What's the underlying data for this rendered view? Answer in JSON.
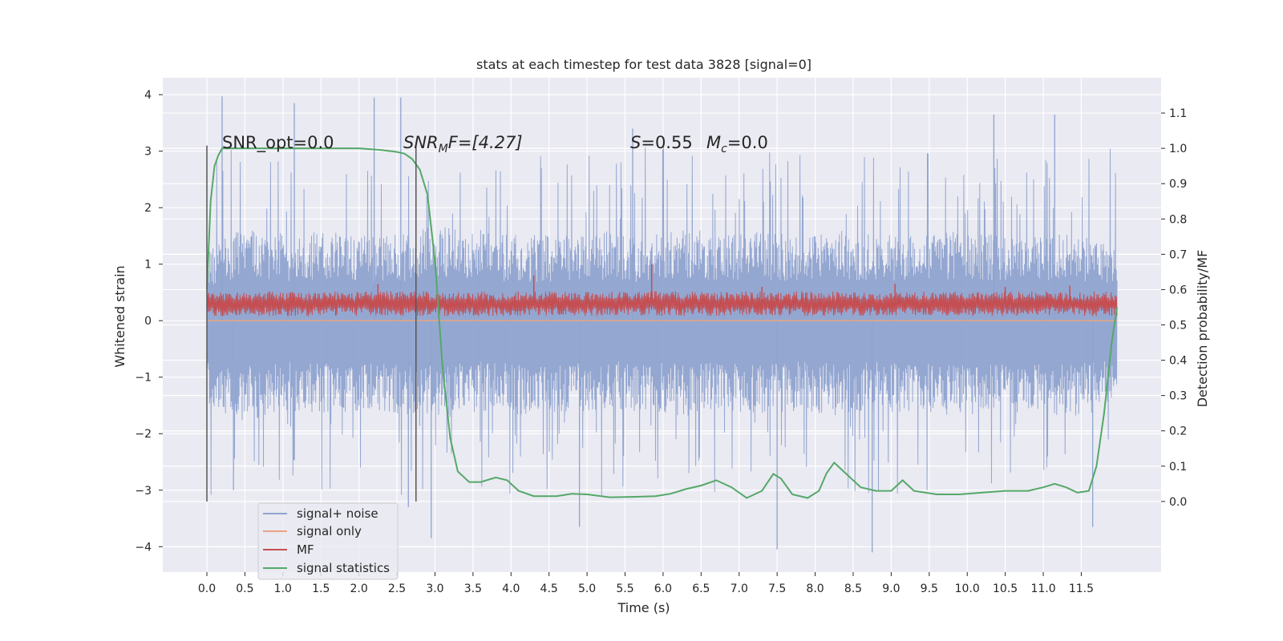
{
  "chart_data": {
    "type": "line",
    "title": "stats at each timestep for test data 3828 [signal=0]",
    "xlabel": "Time (s)",
    "ylabel": "Whitened strain",
    "ylabel_right": "Detection probability/MF",
    "xlim": [
      -0.58,
      12.55
    ],
    "ylim": [
      -4.45,
      4.3
    ],
    "ylim_right": [
      -0.2,
      1.2
    ],
    "x_ticks": [
      "0.0",
      "0.5",
      "1.0",
      "1.5",
      "2.0",
      "2.5",
      "3.0",
      "3.5",
      "4.0",
      "4.5",
      "5.0",
      "5.5",
      "6.0",
      "6.5",
      "7.0",
      "7.5",
      "8.0",
      "8.5",
      "9.0",
      "9.5",
      "10.0",
      "10.5",
      "11.0",
      "11.5"
    ],
    "y_ticks": [
      "4",
      "3",
      "2",
      "1",
      "0",
      "−1",
      "−2",
      "−3",
      "−4"
    ],
    "y_ticks_right": [
      "1.1",
      "1.0",
      "0.9",
      "0.8",
      "0.7",
      "0.6",
      "0.5",
      "0.4",
      "0.3",
      "0.2",
      "0.1",
      "0.0"
    ],
    "grid": true,
    "legend_position": "lower-left",
    "annotations": {
      "snr_opt": "SNR_opt=0.0",
      "snr_mf_sym": "SNR",
      "snr_mf_sub": "M",
      "snr_mf_tail": "F=[4.27]",
      "s_sym": "S",
      "s_val": "=0.55",
      "mc_sym": "M",
      "mc_sub": "c",
      "mc_val": "=0.0"
    },
    "vertical_markers": [
      0.0,
      2.75
    ],
    "series": [
      {
        "name": "signal+ noise",
        "color": "#8fa3cf",
        "envelope_upper": [
          1.35,
          1.7,
          1.55,
          1.6,
          1.5,
          1.55,
          1.7,
          1.6,
          1.5,
          1.55,
          1.6,
          1.5,
          1.65,
          1.55,
          1.6,
          1.5,
          1.6,
          1.55,
          1.5,
          1.6,
          1.55,
          1.5,
          1.6,
          1.3
        ],
        "envelope_lower": [
          -1.5,
          -1.8,
          -1.6,
          -1.7,
          -1.6,
          -1.65,
          -1.75,
          -1.6,
          -1.7,
          -1.65,
          -1.6,
          -1.6,
          -1.7,
          -1.6,
          -1.65,
          -1.6,
          -1.7,
          -1.6,
          -1.65,
          -1.7,
          -1.6,
          -1.65,
          -1.7,
          -1.5
        ],
        "peaks_up": [
          [
            0.2,
            3.97
          ],
          [
            1.15,
            3.85
          ],
          [
            2.2,
            3.95
          ],
          [
            2.55,
            3.95
          ],
          [
            5.6,
            3.4
          ],
          [
            10.35,
            3.65
          ],
          [
            11.15,
            3.65
          ]
        ],
        "peaks_down": [
          [
            0.35,
            -3.0
          ],
          [
            2.65,
            -3.3
          ],
          [
            2.95,
            -3.85
          ],
          [
            4.9,
            -3.65
          ],
          [
            7.5,
            -4.05
          ],
          [
            8.75,
            -4.1
          ],
          [
            11.65,
            -3.65
          ]
        ],
        "x_range": [
          0.0,
          11.97
        ]
      },
      {
        "name": "signal only",
        "color": "#e8a483",
        "x": [
          0.0,
          11.97
        ],
        "y": [
          0.0,
          0.0
        ]
      },
      {
        "name": "MF",
        "color": "#c44e52",
        "base": 0.3,
        "spread": 0.22,
        "peaks": [
          [
            2.25,
            0.65
          ],
          [
            4.3,
            0.8
          ],
          [
            5.85,
            1.0
          ],
          [
            7.3,
            0.6
          ],
          [
            9.05,
            0.65
          ],
          [
            10.5,
            0.6
          ],
          [
            11.35,
            0.62
          ]
        ],
        "x_range": [
          0.0,
          11.97
        ]
      },
      {
        "name": "signal statistics",
        "color": "#55a868",
        "axis": "right",
        "x": [
          0.0,
          0.05,
          0.1,
          0.15,
          0.2,
          0.3,
          0.5,
          1.0,
          1.5,
          2.0,
          2.3,
          2.5,
          2.6,
          2.7,
          2.8,
          2.9,
          3.0,
          3.1,
          3.2,
          3.3,
          3.45,
          3.6,
          3.8,
          3.95,
          4.1,
          4.3,
          4.6,
          4.8,
          5.0,
          5.3,
          5.6,
          5.9,
          6.1,
          6.3,
          6.5,
          6.7,
          6.9,
          7.1,
          7.3,
          7.45,
          7.55,
          7.7,
          7.9,
          8.05,
          8.15,
          8.25,
          8.4,
          8.6,
          8.8,
          9.0,
          9.15,
          9.3,
          9.6,
          9.9,
          10.2,
          10.5,
          10.8,
          11.0,
          11.15,
          11.3,
          11.45,
          11.6,
          11.7,
          11.8,
          11.9,
          11.97
        ],
        "y": [
          0.6,
          0.85,
          0.95,
          0.98,
          1.0,
          1.0,
          1.0,
          1.0,
          1.0,
          1.0,
          0.995,
          0.99,
          0.985,
          0.97,
          0.94,
          0.87,
          0.68,
          0.38,
          0.18,
          0.085,
          0.055,
          0.055,
          0.068,
          0.06,
          0.03,
          0.015,
          0.015,
          0.022,
          0.02,
          0.012,
          0.013,
          0.015,
          0.022,
          0.035,
          0.045,
          0.06,
          0.04,
          0.01,
          0.03,
          0.078,
          0.065,
          0.02,
          0.01,
          0.03,
          0.08,
          0.11,
          0.08,
          0.04,
          0.03,
          0.03,
          0.06,
          0.03,
          0.02,
          0.02,
          0.025,
          0.03,
          0.03,
          0.04,
          0.05,
          0.04,
          0.025,
          0.03,
          0.1,
          0.25,
          0.45,
          0.55
        ]
      }
    ]
  }
}
